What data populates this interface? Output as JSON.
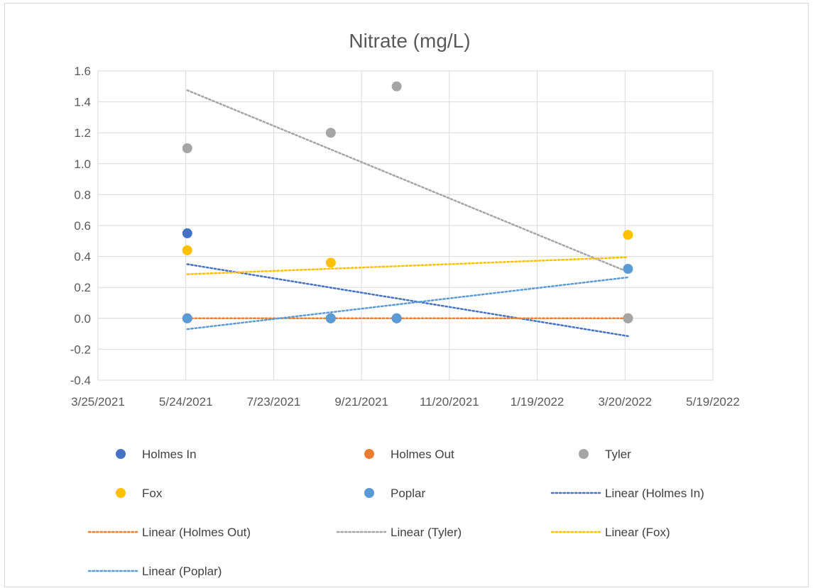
{
  "chart_data": {
    "type": "scatter",
    "title": "Nitrate (mg/L)",
    "xlabel": "",
    "ylabel": "",
    "x_axis": {
      "ticks": [
        "3/25/2021",
        "5/24/2021",
        "7/23/2021",
        "9/21/2021",
        "11/20/2021",
        "1/19/2022",
        "3/20/2022",
        "5/19/2022"
      ],
      "range": [
        "2021-03-25",
        "2022-05-19"
      ],
      "tick_interval_days": 60
    },
    "y_axis": {
      "ticks": [
        "1.6",
        "1.4",
        "1.2",
        "1.0",
        "0.8",
        "0.6",
        "0.4",
        "0.2",
        "0.0",
        "-0.2",
        "-0.4"
      ],
      "range": [
        -0.4,
        1.6
      ]
    },
    "grid": true,
    "legend_position": "bottom",
    "series": [
      {
        "name": "Holmes In",
        "color": "#4472c4",
        "points": [
          [
            "2021-05-25",
            0.55
          ],
          [
            "2021-08-31",
            0.0
          ],
          [
            "2021-10-15",
            0.0
          ],
          [
            "2022-03-22",
            0.0
          ]
        ]
      },
      {
        "name": "Holmes Out",
        "color": "#ed7d31",
        "points": [
          [
            "2021-05-25",
            0.0
          ],
          [
            "2021-08-31",
            0.0
          ],
          [
            "2021-10-15",
            0.0
          ],
          [
            "2022-03-22",
            0.0
          ]
        ]
      },
      {
        "name": "Tyler",
        "color": "#a5a5a5",
        "points": [
          [
            "2021-05-25",
            1.1
          ],
          [
            "2021-08-31",
            1.2
          ],
          [
            "2021-10-15",
            1.5
          ],
          [
            "2022-03-22",
            0.0
          ]
        ]
      },
      {
        "name": "Fox",
        "color": "#ffc000",
        "points": [
          [
            "2021-05-25",
            0.44
          ],
          [
            "2021-08-31",
            0.36
          ],
          [
            "2022-03-22",
            0.54
          ]
        ]
      },
      {
        "name": "Poplar",
        "color": "#5b9bd5",
        "points": [
          [
            "2021-05-25",
            0.0
          ],
          [
            "2021-08-31",
            0.0
          ],
          [
            "2021-10-15",
            0.0
          ],
          [
            "2022-03-22",
            0.32
          ]
        ]
      }
    ],
    "trendlines": [
      {
        "name": "Linear (Holmes In)",
        "color": "#4472c4",
        "from": [
          "2021-05-25",
          0.35
        ],
        "to": [
          "2022-03-22",
          -0.115
        ]
      },
      {
        "name": "Linear (Holmes Out)",
        "color": "#ed7d31",
        "from": [
          "2021-05-25",
          0.0
        ],
        "to": [
          "2022-03-22",
          0.0
        ]
      },
      {
        "name": "Linear (Tyler)",
        "color": "#a5a5a5",
        "from": [
          "2021-05-25",
          1.475
        ],
        "to": [
          "2022-03-22",
          0.3
        ]
      },
      {
        "name": "Linear (Fox)",
        "color": "#ffc000",
        "from": [
          "2021-05-25",
          0.285
        ],
        "to": [
          "2022-03-22",
          0.395
        ]
      },
      {
        "name": "Linear (Poplar)",
        "color": "#5b9bd5",
        "from": [
          "2021-05-25",
          -0.07
        ],
        "to": [
          "2022-03-22",
          0.265
        ]
      }
    ],
    "legend": [
      {
        "label": "Holmes In",
        "kind": "marker",
        "color": "#4472c4"
      },
      {
        "label": "Holmes Out",
        "kind": "marker",
        "color": "#ed7d31"
      },
      {
        "label": "Tyler",
        "kind": "marker",
        "color": "#a5a5a5"
      },
      {
        "label": "Fox",
        "kind": "marker",
        "color": "#ffc000"
      },
      {
        "label": "Poplar",
        "kind": "marker",
        "color": "#5b9bd5"
      },
      {
        "label": "Linear (Holmes In)",
        "kind": "line",
        "color": "#4472c4"
      },
      {
        "label": "Linear (Holmes Out)",
        "kind": "line",
        "color": "#ed7d31"
      },
      {
        "label": "Linear (Tyler)",
        "kind": "line",
        "color": "#a5a5a5"
      },
      {
        "label": "Linear (Fox)",
        "kind": "line",
        "color": "#ffc000"
      },
      {
        "label": "Linear (Poplar)",
        "kind": "line",
        "color": "#5b9bd5"
      }
    ]
  }
}
